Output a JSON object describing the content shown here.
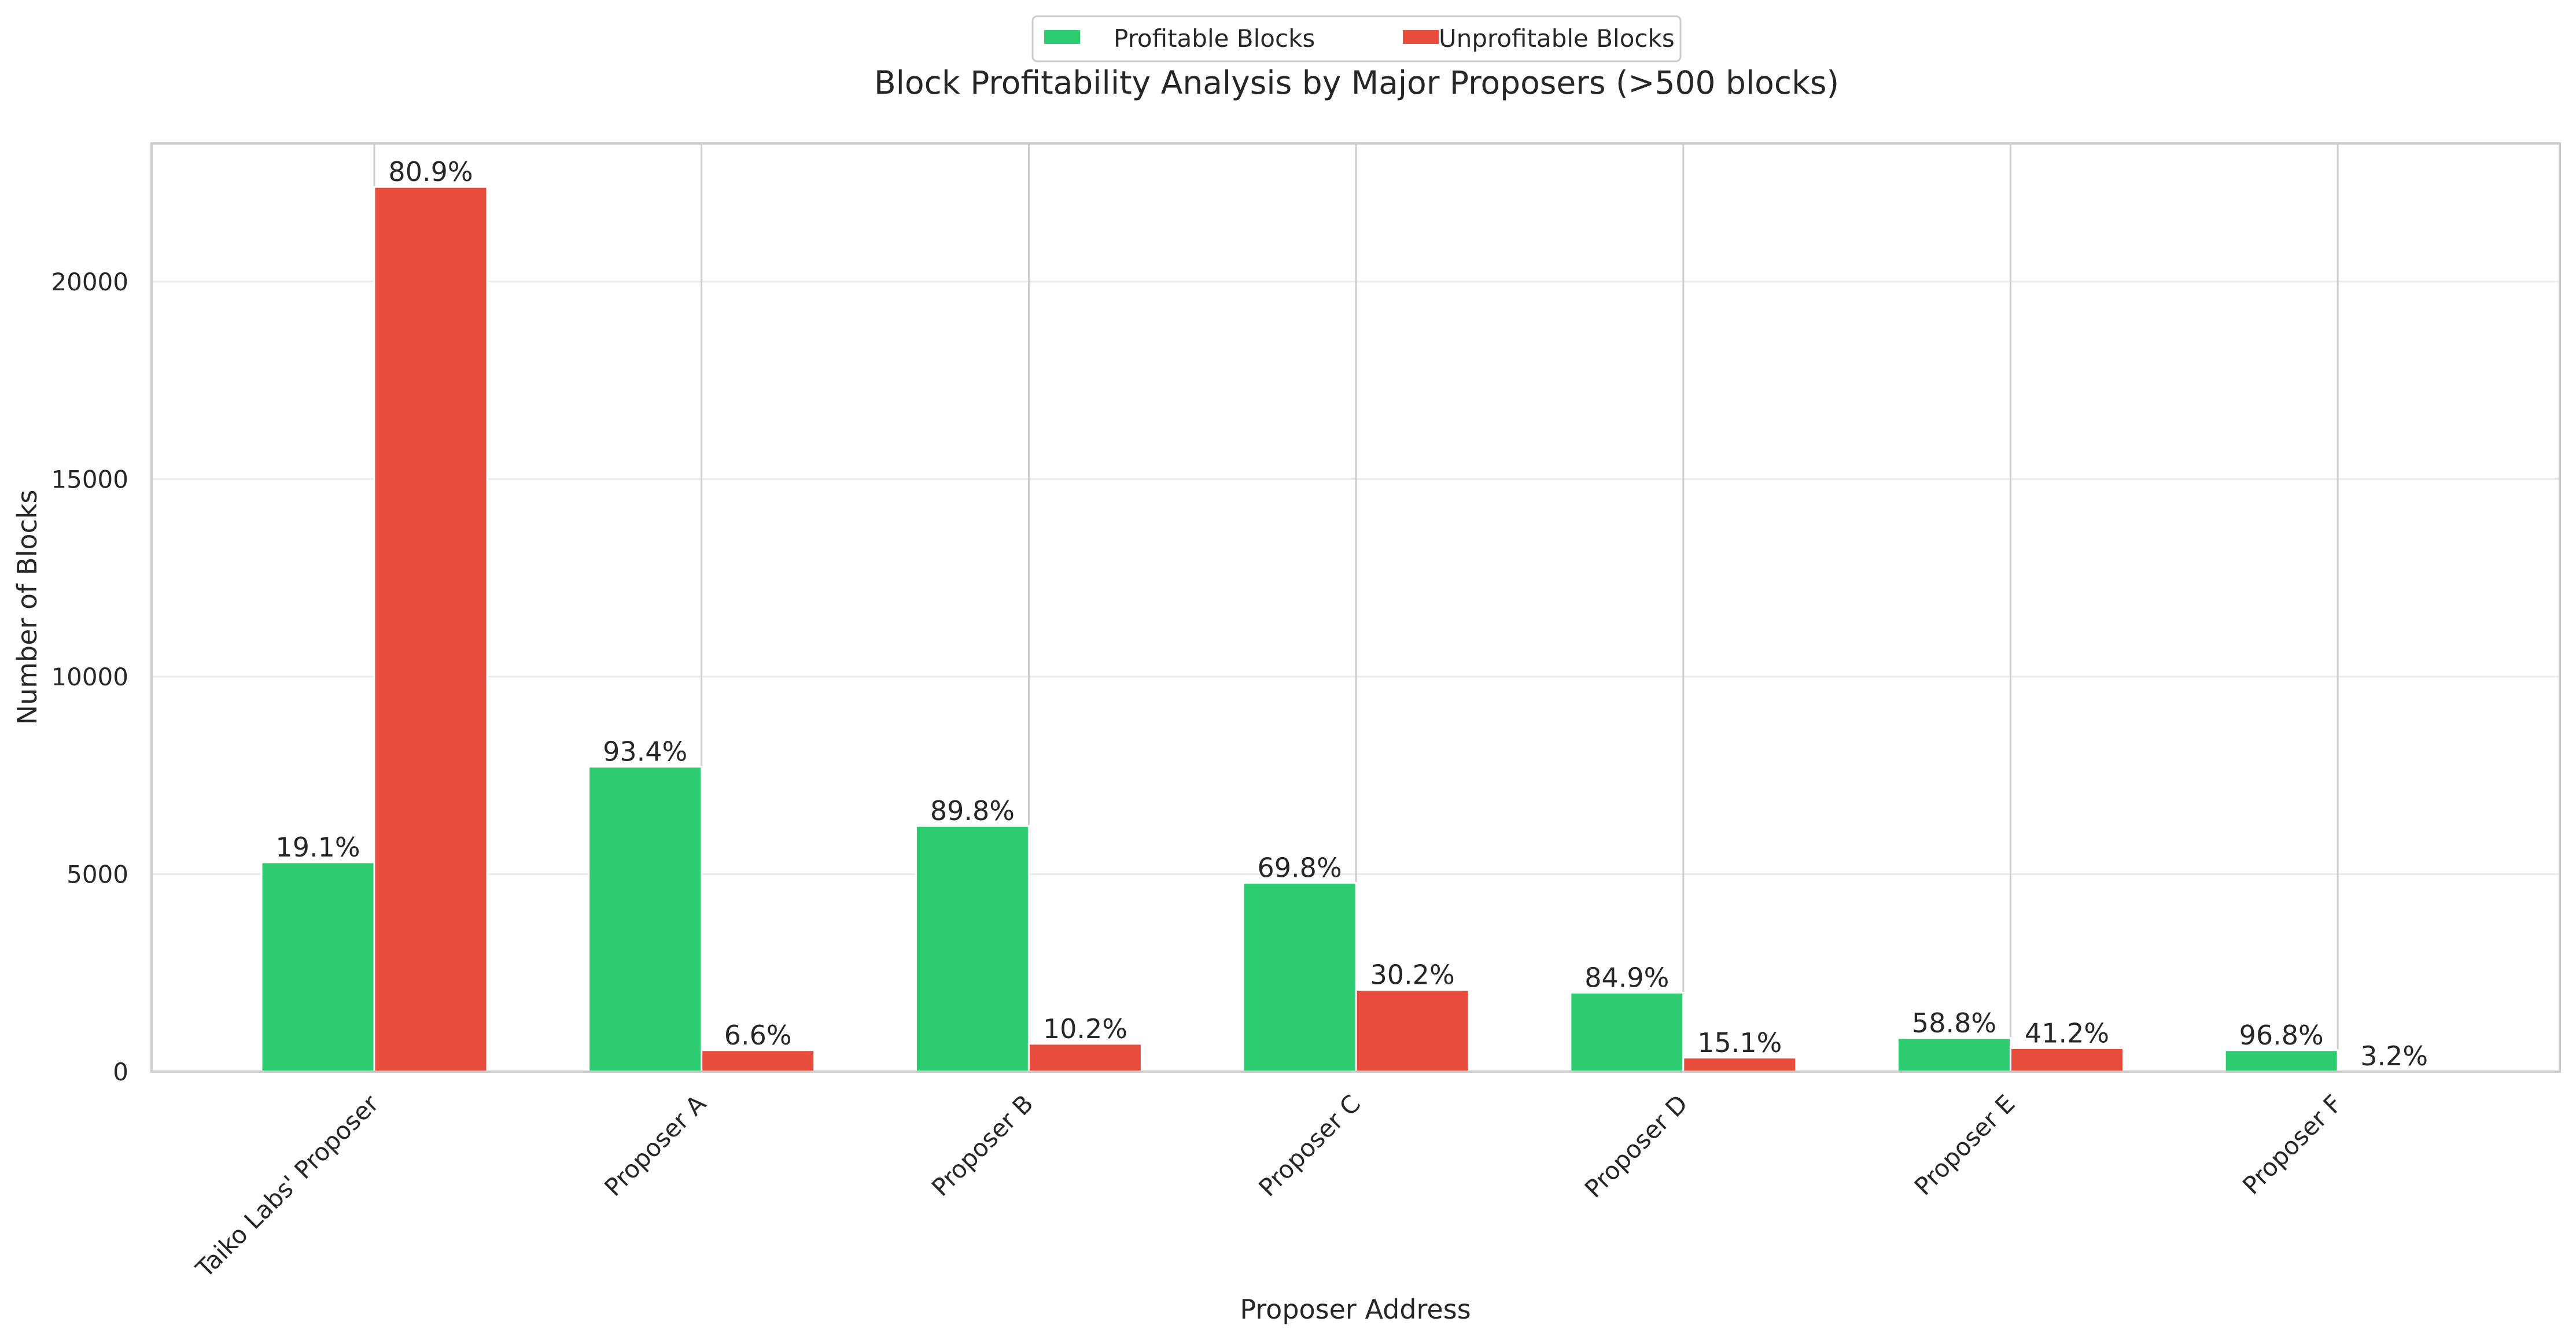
{
  "chart_data": {
    "type": "bar",
    "title": "Block Profitability Analysis by Major Proposers (>500 blocks)",
    "xlabel": "Proposer Address",
    "ylabel": "Number of Blocks",
    "ylim": [
      0,
      23500
    ],
    "yticks": [
      0,
      5000,
      10000,
      15000,
      20000
    ],
    "legend_position": "top-center",
    "categories": [
      "Taiko Labs' Proposer",
      "Proposer A",
      "Proposer B",
      "Proposer C",
      "Proposer D",
      "Proposer E",
      "Proposer F"
    ],
    "series": [
      {
        "name": "Profitable Blocks",
        "color": "#2ecc71",
        "values": [
          5300,
          7720,
          6220,
          4780,
          2000,
          850,
          545
        ],
        "labels": [
          "19.1%",
          "93.4%",
          "89.8%",
          "69.8%",
          "84.9%",
          "58.8%",
          "96.8%"
        ]
      },
      {
        "name": "Unprofitable Blocks",
        "color": "#e74c3c",
        "values": [
          22400,
          545,
          705,
          2070,
          355,
          595,
          18
        ],
        "labels": [
          "80.9%",
          "6.6%",
          "10.2%",
          "30.2%",
          "15.1%",
          "41.2%",
          "3.2%"
        ]
      }
    ]
  }
}
